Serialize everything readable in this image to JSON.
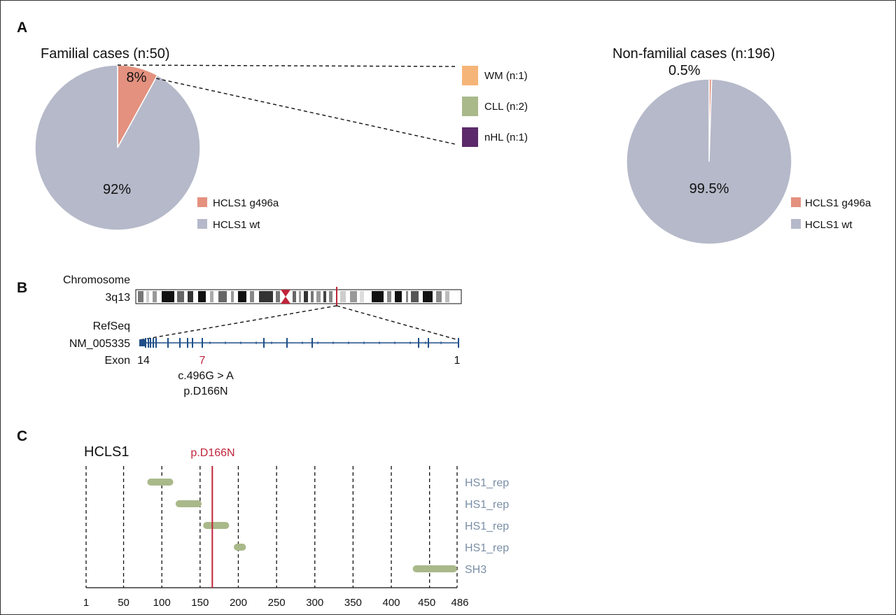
{
  "panels": {
    "a": "A",
    "b": "B",
    "c": "C"
  },
  "colors": {
    "mutant": "#e4917f",
    "wt": "#b5b9c9",
    "wm": "#f6b578",
    "cll": "#a9b98a",
    "nhl": "#5c2a6a",
    "refseq": "#1f4f88",
    "highlight": "#c0243b",
    "domain": "#a9b98a",
    "domain_label": "#7a8ea6"
  },
  "chart_data": [
    {
      "type": "pie",
      "title": "Familial cases (n:50)",
      "slices": [
        {
          "name": "HCLS1 g496a",
          "value": 8,
          "label": "8%"
        },
        {
          "name": "HCLS1 wt",
          "value": 92,
          "label": "92%"
        }
      ],
      "legend": [
        "HCLS1 g496a",
        "HCLS1 wt"
      ],
      "breakdown": [
        {
          "name": "WM (n:1)",
          "value": 1
        },
        {
          "name": "CLL (n:2)",
          "value": 2
        },
        {
          "name": "nHL (n:1)",
          "value": 1
        }
      ]
    },
    {
      "type": "pie",
      "title": "Non-familial cases (n:196)",
      "slices": [
        {
          "name": "HCLS1 g496a",
          "value": 0.5,
          "label": "0.5%"
        },
        {
          "name": "HCLS1 wt",
          "value": 99.5,
          "label": "99.5%"
        }
      ],
      "legend": [
        "HCLS1 g496a",
        "HCLS1 wt"
      ]
    },
    {
      "type": "bar",
      "title": "HCLS1",
      "marker": {
        "label": "p.D166N",
        "position": 166
      },
      "xlim": [
        1,
        486
      ],
      "xticks": [
        1,
        50,
        100,
        150,
        200,
        250,
        300,
        350,
        400,
        450,
        486
      ],
      "grid": true,
      "domains": [
        {
          "name": "HS1_rep",
          "start": 81,
          "end": 115
        },
        {
          "name": "HS1_rep",
          "start": 118,
          "end": 152
        },
        {
          "name": "HS1_rep",
          "start": 154,
          "end": 188
        },
        {
          "name": "HS1_rep",
          "start": 194,
          "end": 210
        },
        {
          "name": "SH3",
          "start": 428,
          "end": 486
        }
      ]
    }
  ],
  "panel_b": {
    "chromosome_label": "Chromosome",
    "band": "3q13",
    "refseq_label": "RefSeq",
    "transcript": "NM_005335",
    "exon_label": "Exon",
    "exon_first": "14",
    "exon_highlight": "7",
    "exon_last": "1",
    "mutation_cdna": "c.496G > A",
    "mutation_protein": "p.D166N"
  }
}
